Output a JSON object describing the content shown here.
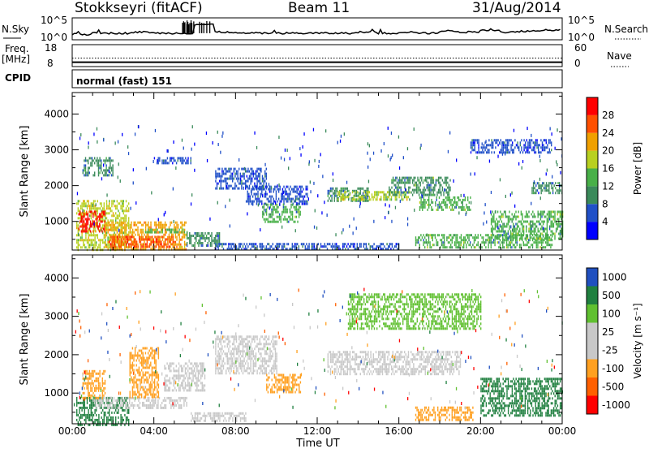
{
  "header": {
    "station": "Stokkseyri (fitACF)",
    "beam": "Beam 11",
    "date": "31/Aug/2014"
  },
  "strips": {
    "nsky_label": "N.Sky",
    "nsky_tick_top": "10^5",
    "nsky_tick_bottom": "10^0",
    "nsearch_label": "N.Search",
    "nsearch_tick_top": "10^5",
    "nsearch_tick_bottom": "10^0",
    "freq_label": "Freq.",
    "freq_unit": "[MHz]",
    "freq_tick_top": "18",
    "freq_tick_bottom": "8",
    "nave_label": "Nave",
    "nave_tick_top": "60",
    "nave_tick_bottom": "0",
    "cpid_label": "CPID",
    "cpid_value": "normal (fast) 151"
  },
  "colors": {
    "power": [
      "#0000ff",
      "#2050c8",
      "#3a8a5a",
      "#48b048",
      "#b8d020",
      "#f0a000",
      "#ff5000",
      "#ff0000"
    ],
    "velocity": [
      "#ff0000",
      "#ff6000",
      "#ffa020",
      "#c8c8c8",
      "#c8c8c8",
      "#60c030",
      "#208040",
      "#2050c0"
    ]
  },
  "chart_data": [
    {
      "type": "heatmap",
      "name": "Power",
      "ylabel": "Slant Range [km]",
      "y_ticks": [
        "1000",
        "2000",
        "3000",
        "4000"
      ],
      "ylim": [
        200,
        4600
      ],
      "xlim": [
        0,
        24
      ],
      "colorbar_label": "Power [dB]",
      "colorbar_ticks": [
        "4",
        "8",
        "12",
        "16",
        "20",
        "24",
        "28"
      ],
      "color_range": [
        0,
        32
      ],
      "regions": [
        {
          "x": [
            0.2,
            2.8
          ],
          "y": [
            200,
            1600
          ],
          "value": 18
        },
        {
          "x": [
            0.3,
            1.6
          ],
          "y": [
            700,
            1300
          ],
          "value": 28
        },
        {
          "x": [
            1.6,
            5.6
          ],
          "y": [
            250,
            1000
          ],
          "value": 22
        },
        {
          "x": [
            1.8,
            5.0
          ],
          "y": [
            300,
            600
          ],
          "value": 27
        },
        {
          "x": [
            3.5,
            5.6
          ],
          "y": [
            700,
            800
          ],
          "value": 15
        },
        {
          "x": [
            5.6,
            7.2
          ],
          "y": [
            300,
            700
          ],
          "value": 8
        },
        {
          "x": [
            0.5,
            2.0
          ],
          "y": [
            2300,
            2800
          ],
          "value": 10
        },
        {
          "x": [
            4.0,
            5.8
          ],
          "y": [
            2600,
            2800
          ],
          "value": 6
        },
        {
          "x": [
            7.0,
            9.5
          ],
          "y": [
            1900,
            2500
          ],
          "value": 5
        },
        {
          "x": [
            8.5,
            11.5
          ],
          "y": [
            1500,
            2000
          ],
          "value": 5
        },
        {
          "x": [
            9.3,
            11.2
          ],
          "y": [
            1000,
            1500
          ],
          "value": 12
        },
        {
          "x": [
            12.5,
            14.5
          ],
          "y": [
            1600,
            1950
          ],
          "value": 9
        },
        {
          "x": [
            13.0,
            16.5
          ],
          "y": [
            1600,
            1850
          ],
          "value": 16
        },
        {
          "x": [
            15.5,
            18.5
          ],
          "y": [
            1750,
            2250
          ],
          "value": 11
        },
        {
          "x": [
            17.0,
            19.5
          ],
          "y": [
            1300,
            1700
          ],
          "value": 12
        },
        {
          "x": [
            16.8,
            23.5
          ],
          "y": [
            300,
            650
          ],
          "value": 13
        },
        {
          "x": [
            20.5,
            24.0
          ],
          "y": [
            500,
            1300
          ],
          "value": 12
        },
        {
          "x": [
            22.5,
            24.0
          ],
          "y": [
            1800,
            2100
          ],
          "value": 9
        },
        {
          "x": [
            19.5,
            23.5
          ],
          "y": [
            2900,
            3300
          ],
          "value": 4
        },
        {
          "x": [
            7.0,
            16.0
          ],
          "y": [
            250,
            400
          ],
          "value": 6
        }
      ]
    },
    {
      "type": "heatmap",
      "name": "Velocity",
      "ylabel": "Slant Range [km]",
      "xlabel": "Time UT",
      "x_ticks": [
        "00:00",
        "04:00",
        "08:00",
        "12:00",
        "16:00",
        "20:00",
        "00:00"
      ],
      "y_ticks": [
        "1000",
        "2000",
        "3000",
        "4000"
      ],
      "ylim": [
        200,
        4600
      ],
      "xlim": [
        0,
        24
      ],
      "colorbar_label": "Velocity [m s⁻¹]",
      "colorbar_ticks": [
        "-1000",
        "-500",
        "-100",
        "-25",
        "25",
        "100",
        "500",
        "1000"
      ],
      "regions": [
        {
          "x": [
            0.2,
            2.8
          ],
          "y": [
            200,
            900
          ],
          "value": 300
        },
        {
          "x": [
            1.0,
            5.6
          ],
          "y": [
            600,
            900
          ],
          "value": 10
        },
        {
          "x": [
            0.5,
            1.6
          ],
          "y": [
            900,
            1600
          ],
          "value": -200
        },
        {
          "x": [
            2.8,
            4.2
          ],
          "y": [
            900,
            2200
          ],
          "value": -300
        },
        {
          "x": [
            4.5,
            6.5
          ],
          "y": [
            1100,
            1800
          ],
          "value": -40
        },
        {
          "x": [
            7.0,
            10.0
          ],
          "y": [
            1500,
            2500
          ],
          "value": 0
        },
        {
          "x": [
            9.5,
            11.2
          ],
          "y": [
            1000,
            1500
          ],
          "value": -300
        },
        {
          "x": [
            12.5,
            19.0
          ],
          "y": [
            1500,
            2100
          ],
          "value": 0
        },
        {
          "x": [
            16.8,
            19.6
          ],
          "y": [
            300,
            650
          ],
          "value": -100
        },
        {
          "x": [
            20.0,
            24.0
          ],
          "y": [
            400,
            1400
          ],
          "value": 200
        },
        {
          "x": [
            13.5,
            20.0
          ],
          "y": [
            2700,
            3600
          ],
          "value": 30
        },
        {
          "x": [
            5.8,
            8.5
          ],
          "y": [
            250,
            500
          ],
          "value": 10
        }
      ]
    }
  ],
  "strip_data": {
    "nsky": [
      0.25,
      0.3,
      0.3,
      0.35,
      0.3,
      0.3,
      0.7,
      0.35,
      0.3,
      0.3,
      0.3,
      0.3,
      0.3,
      0.3,
      0.35,
      0.3,
      0.35,
      0.3,
      0.4,
      0.35,
      0.45,
      0.35,
      0.4,
      0.45
    ],
    "nsearch": [
      0.3,
      0.3,
      0.3,
      0.3,
      0.3,
      0.3,
      0.3,
      0.3,
      0.3,
      0.3,
      0.3,
      0.3,
      0.3,
      0.3,
      0.3,
      0.3,
      0.3,
      0.3,
      0.3,
      0.3,
      0.3,
      0.3,
      0.3,
      0.3
    ],
    "freq_mhz": 10,
    "nave": 23
  }
}
